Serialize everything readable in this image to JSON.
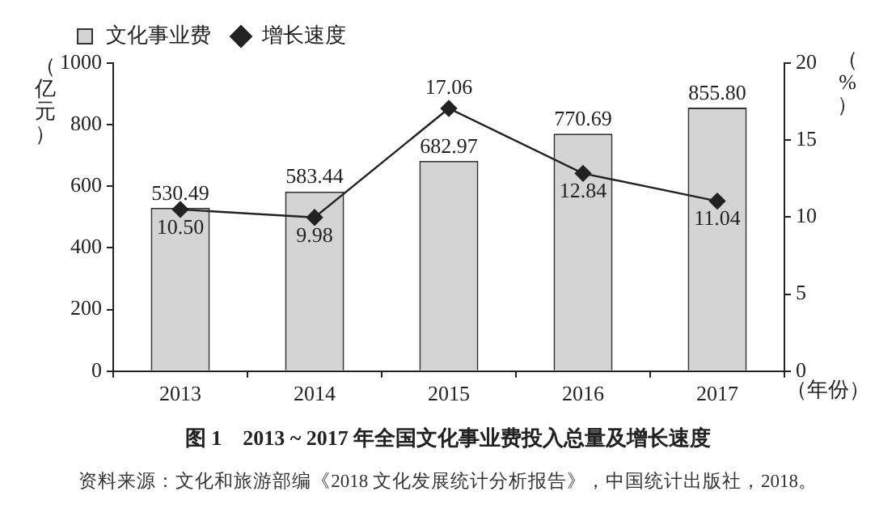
{
  "chart_data": {
    "type": "bar",
    "title": "图 1　2013 ~ 2017 年全国文化事业费投入总量及增长速度",
    "categories": [
      "2013",
      "2014",
      "2015",
      "2016",
      "2017"
    ],
    "series": [
      {
        "name": "文化事业费",
        "color": "#d4d4d4",
        "values": [
          530.49,
          583.44,
          682.97,
          770.69,
          855.8
        ],
        "value_labels": [
          "530.49",
          "583.44",
          "682.97",
          "770.69",
          "855.80"
        ]
      },
      {
        "name": "增长速度",
        "type": "line",
        "axis": "y2",
        "color": "#222222",
        "marker": "diamond",
        "values": [
          10.5,
          9.98,
          17.06,
          12.84,
          11.04
        ],
        "value_labels": [
          "10.50",
          "9.98",
          "17.06",
          "12.84",
          "11.04"
        ]
      }
    ],
    "ylabel": "（亿元）",
    "y2label": "（%）",
    "xlabel": "（年份）",
    "ylim": [
      0,
      1000
    ],
    "yticks": [
      0,
      200,
      400,
      600,
      800,
      1000
    ],
    "y2lim": [
      0,
      20
    ],
    "y2ticks": [
      0,
      5,
      10,
      15,
      20
    ],
    "grid": false,
    "legend": "top left",
    "annotations": [
      "资料来源：文化和旅游部编《2018 文化发展统计分析报告》，中国统计出版社，2018。"
    ]
  }
}
